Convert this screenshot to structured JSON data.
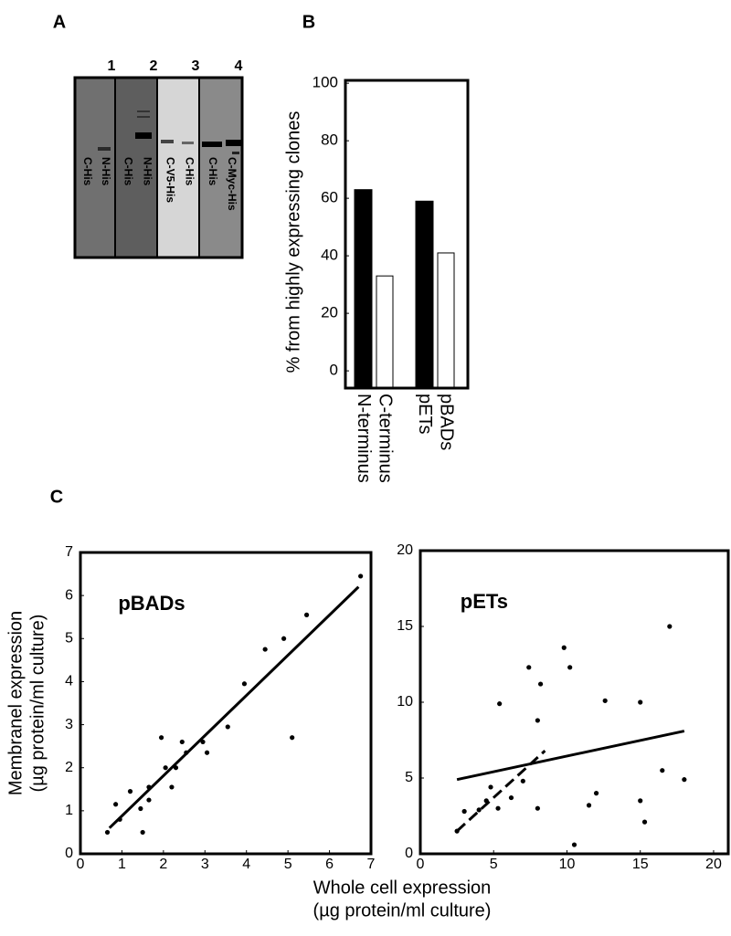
{
  "panel_labels": [
    "A",
    "B",
    "C"
  ],
  "gel": {
    "lanes": [
      "1",
      "2",
      "3",
      "4"
    ],
    "bands": [
      [
        "C-His",
        "N-His"
      ],
      [
        "C-His",
        "N-His"
      ],
      [
        "C-V5-His",
        "C-His"
      ],
      [
        "C-His",
        "C-Myc-His"
      ]
    ]
  },
  "chart_data": [
    {
      "type": "bar",
      "ylabel": "% from highly expressing clones",
      "categories": [
        "N-terminus",
        "C-terminus",
        "pETs",
        "pBADs"
      ],
      "values": [
        63,
        33,
        59,
        41
      ],
      "colors": [
        "#000000",
        "#ffffff",
        "#000000",
        "#ffffff"
      ],
      "ylim": [
        -6,
        101
      ],
      "yticks": [
        0,
        20,
        40,
        60,
        80,
        100
      ]
    },
    {
      "type": "scatter",
      "annotation": "pBADs",
      "x": [
        0.65,
        0.85,
        0.95,
        1.2,
        1.45,
        1.5,
        1.65,
        1.65,
        1.95,
        2.05,
        2.2,
        2.3,
        2.45,
        2.55,
        2.95,
        3.05,
        3.55,
        3.95,
        4.45,
        4.9,
        5.1,
        5.45,
        6.75
      ],
      "y": [
        0.5,
        1.15,
        0.8,
        1.45,
        1.05,
        0.5,
        1.25,
        1.55,
        2.7,
        2.0,
        1.55,
        2.0,
        2.6,
        2.35,
        2.6,
        2.35,
        2.95,
        3.95,
        4.75,
        5.0,
        2.7,
        5.55,
        6.45
      ],
      "xlim": [
        0,
        7
      ],
      "ylim": [
        0,
        7
      ],
      "xticks": [
        0,
        1,
        2,
        3,
        4,
        5,
        6,
        7
      ],
      "yticks": [
        0,
        1,
        2,
        3,
        4,
        5,
        6,
        7
      ],
      "fit_lines": [
        {
          "x": [
            0.7,
            6.7
          ],
          "y": [
            0.6,
            6.2
          ],
          "style": "solid"
        }
      ]
    },
    {
      "type": "scatter",
      "annotation": "pETs",
      "x": [
        2.5,
        3,
        4,
        4.5,
        4.8,
        5.3,
        5.4,
        6.2,
        7,
        7.4,
        8,
        8,
        8.2,
        9.8,
        10.2,
        10.5,
        11.5,
        12,
        12.6,
        15,
        15,
        15.3,
        16.5,
        17,
        18
      ],
      "y": [
        1.5,
        2.8,
        2.9,
        3.5,
        4.4,
        3.0,
        9.9,
        3.7,
        4.8,
        12.3,
        3.0,
        8.8,
        11.2,
        13.6,
        12.3,
        0.6,
        3.2,
        4.0,
        10.1,
        10.0,
        3.5,
        2.1,
        5.5,
        15.0,
        4.9
      ],
      "xlim": [
        0,
        21
      ],
      "ylim": [
        0,
        20
      ],
      "xticks": [
        0,
        5,
        10,
        15,
        20
      ],
      "yticks": [
        0,
        5,
        10,
        15,
        20
      ],
      "fit_lines": [
        {
          "x": [
            2.5,
            18
          ],
          "y": [
            4.9,
            8.1
          ],
          "style": "solid"
        },
        {
          "x": [
            2.5,
            8.5
          ],
          "y": [
            1.5,
            6.8
          ],
          "style": "dashed"
        }
      ]
    }
  ],
  "panel_c_axes": {
    "ylabel": [
      "Membranel expression",
      "(µg protein/ml culture)"
    ],
    "xlabel": [
      "Whole cell expression",
      "(µg protein/ml culture)"
    ]
  }
}
